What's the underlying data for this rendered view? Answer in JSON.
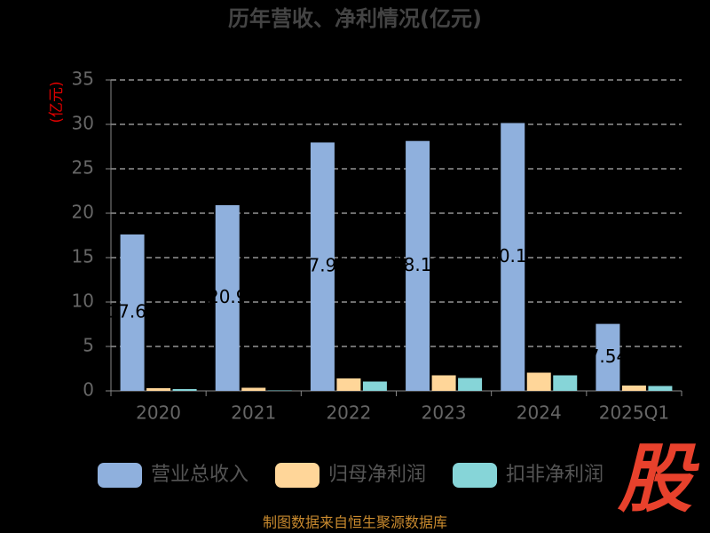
{
  "chart_data": {
    "type": "bar",
    "title": "历年营收、净利情况(亿元)",
    "y_label": "(亿元)",
    "categories": [
      "2020",
      "2021",
      "2022",
      "2023",
      "2024",
      "2025Q1"
    ],
    "series": [
      {
        "name": "营业总收入",
        "color": "#8fb0dd",
        "values": [
          17.61,
          20.9,
          27.96,
          28.13,
          30.15,
          7.54
        ],
        "show_labels": true
      },
      {
        "name": "归母净利润",
        "color": "#ffd699",
        "values": [
          0.3,
          0.35,
          1.4,
          1.75,
          2.05,
          0.6
        ]
      },
      {
        "name": "扣非净利润",
        "color": "#86d5d8",
        "values": [
          0.2,
          0.05,
          1.05,
          1.45,
          1.75,
          0.55
        ]
      }
    ],
    "ylim": [
      0,
      35
    ],
    "yticks": [
      0,
      5,
      10,
      15,
      20,
      25,
      30,
      35
    ],
    "grid": true,
    "legend": "bottom",
    "source": "制图数据来自恒生聚源数据库",
    "logo": "股"
  }
}
